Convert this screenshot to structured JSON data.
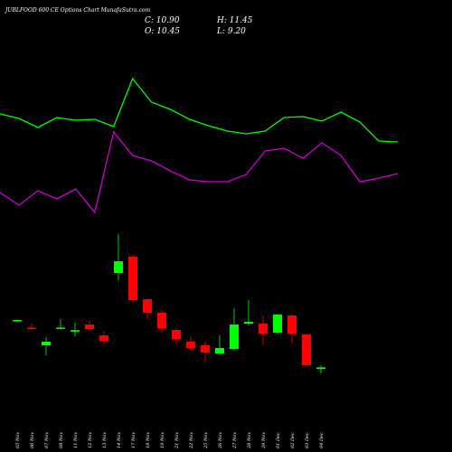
{
  "chart_data": [
    {
      "type": "candlestick",
      "title": "JUBLFOOD 600 CE Options Chart MunafaSutra.com",
      "last_labels": {
        "close": "C: 10.90",
        "high": "H: 11.45",
        "open": "O: 10.45",
        "low": "L: 9.20"
      },
      "categories": [
        "05 Nov",
        "06 Nov",
        "07 Nov",
        "08 Nov",
        "11 Nov",
        "12 Nov",
        "13 Nov",
        "14 Nov",
        "17 Nov",
        "18 Nov",
        "19 Nov",
        "21 Nov",
        "22 Nov",
        "25 Nov",
        "26 Nov",
        "27 Nov",
        "28 Nov",
        "29 Nov",
        "01 Dec",
        "02 Dec",
        "03 Dec",
        "04 Dec"
      ],
      "open": [
        24,
        21.9,
        17,
        21.6,
        20.8,
        22.75,
        19.75,
        37,
        41.5,
        29.75,
        26,
        21.25,
        18,
        17,
        14.75,
        16,
        23,
        23,
        20.5,
        25.25,
        20,
        10.45
      ],
      "high": [
        24.2,
        23.2,
        19.25,
        24.25,
        23.25,
        23.75,
        21,
        47.75,
        42,
        30,
        26.75,
        21.75,
        19.5,
        18,
        19.75,
        27.25,
        29.5,
        25.25,
        25.75,
        25.5,
        20.25,
        11.45
      ],
      "low": [
        23.8,
        21.2,
        14.25,
        21.5,
        19.5,
        21,
        17.25,
        35,
        29,
        24.25,
        20.5,
        17.25,
        15.5,
        12.25,
        14.5,
        15.5,
        22.5,
        17.25,
        20,
        17.5,
        11,
        9.2
      ],
      "close": [
        24,
        21.7,
        18,
        21.9,
        21.2,
        21.5,
        18.25,
        40.25,
        29.5,
        26,
        21.75,
        18.75,
        16.25,
        15,
        16.25,
        22.75,
        23.5,
        20.25,
        25.5,
        20.25,
        11.5,
        10.9
      ],
      "up_color": "#00ff00",
      "down_color": "#ff0000",
      "ylim": [
        5,
        50
      ]
    },
    {
      "type": "line",
      "series": [
        {
          "color": "#00ff00",
          "values": [
            62,
            59.5,
            54.5,
            60,
            58.5,
            59,
            55,
            81.5,
            68.5,
            64.5,
            59,
            55.5,
            52.5,
            51,
            52.5,
            60,
            60.5,
            58,
            63,
            57.5,
            47,
            46.5
          ]
        },
        {
          "color": "#cc00cc",
          "values": [
            18.5,
            11.5,
            19.5,
            15,
            20.5,
            7.5,
            52,
            39,
            36,
            30.5,
            25.5,
            24.5,
            24.5,
            28.5,
            41.5,
            43,
            37.5,
            46,
            39,
            24.5,
            26.5,
            29
          ]
        }
      ],
      "ylim": [
        0,
        100
      ]
    }
  ]
}
